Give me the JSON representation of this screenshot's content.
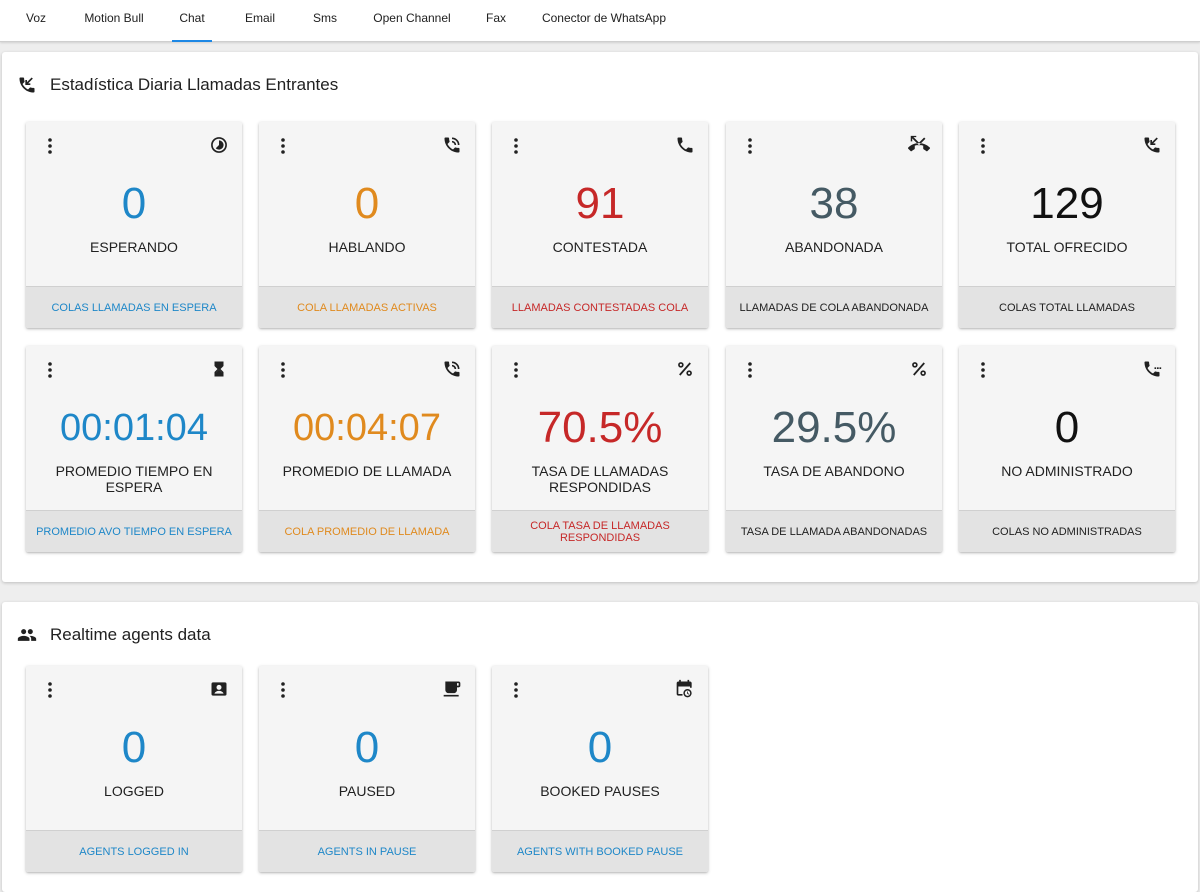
{
  "colors": {
    "blue": "#1e87c8",
    "orange": "#e08a1e",
    "red": "#c62828",
    "slate": "#455a64",
    "black": "#111111",
    "tab_indicator": "#1e88e5"
  },
  "tabs": [
    {
      "label": "Voz",
      "active": false
    },
    {
      "label": "Motion Bull",
      "active": false
    },
    {
      "label": "Chat",
      "active": true
    },
    {
      "label": "Email",
      "active": false
    },
    {
      "label": "Sms",
      "active": false
    },
    {
      "label": "Open Channel",
      "active": false
    },
    {
      "label": "Fax",
      "active": false
    },
    {
      "label": "Conector de WhatsApp",
      "active": false
    }
  ],
  "stats_panel": {
    "title": "Estadística Diaria Llamadas Entrantes",
    "icon": "phone-callback-icon",
    "cards": [
      {
        "value": "0",
        "label": "ESPERANDO",
        "footer": "COLAS LLAMADAS EN ESPERA",
        "color": "blue",
        "icon": "timelapse-icon"
      },
      {
        "value": "0",
        "label": "HABLANDO",
        "footer": "COLA LLAMADAS ACTIVAS",
        "color": "orange",
        "icon": "phone-in-talk-icon"
      },
      {
        "value": "91",
        "label": "CONTESTADA",
        "footer": "LLAMADAS CONTESTADAS COLA",
        "color": "red",
        "icon": "phone-icon"
      },
      {
        "value": "38",
        "label": "ABANDONADA",
        "footer": "LLAMADAS DE COLA ABANDONADA",
        "color": "slate",
        "icon": "call-missed-icon"
      },
      {
        "value": "129",
        "label": "TOTAL OFRECIDO",
        "footer": "COLAS TOTAL LLAMADAS",
        "color": "black",
        "icon": "phone-callback-icon"
      },
      {
        "value": "00:01:04",
        "label": "PROMEDIO TIEMPO EN ESPERA",
        "footer": "PROMEDIO AVO TIEMPO EN ESPERA",
        "color": "blue",
        "icon": "hourglass-icon"
      },
      {
        "value": "00:04:07",
        "label": "PROMEDIO DE LLAMADA",
        "footer": "COLA PROMEDIO DE LLAMADA",
        "color": "orange",
        "icon": "phone-in-talk-icon"
      },
      {
        "value": "70.5%",
        "label": "TASA DE LLAMADAS RESPONDIDAS",
        "footer": "COLA TASA DE LLAMADAS RESPONDIDAS",
        "color": "red",
        "icon": "percent-icon"
      },
      {
        "value": "29.5%",
        "label": "TASA DE ABANDONO",
        "footer": "TASA DE LLAMADA ABANDONADAS",
        "color": "slate",
        "icon": "percent-icon"
      },
      {
        "value": "0",
        "label": "NO ADMINISTRADO",
        "footer": "COLAS NO ADMINISTRADAS",
        "color": "black",
        "icon": "phone-paused-icon"
      }
    ]
  },
  "agents_panel": {
    "title": "Realtime agents data",
    "icon": "people-icon",
    "cards": [
      {
        "value": "0",
        "label": "LOGGED",
        "footer": "AGENTS LOGGED IN",
        "color": "blue",
        "icon": "contact-card-icon"
      },
      {
        "value": "0",
        "label": "PAUSED",
        "footer": "AGENTS IN PAUSE",
        "color": "blue",
        "icon": "coffee-icon"
      },
      {
        "value": "0",
        "label": "BOOKED PAUSES",
        "footer": "AGENTS WITH BOOKED PAUSE",
        "color": "blue",
        "icon": "calendar-clock-icon"
      }
    ]
  }
}
